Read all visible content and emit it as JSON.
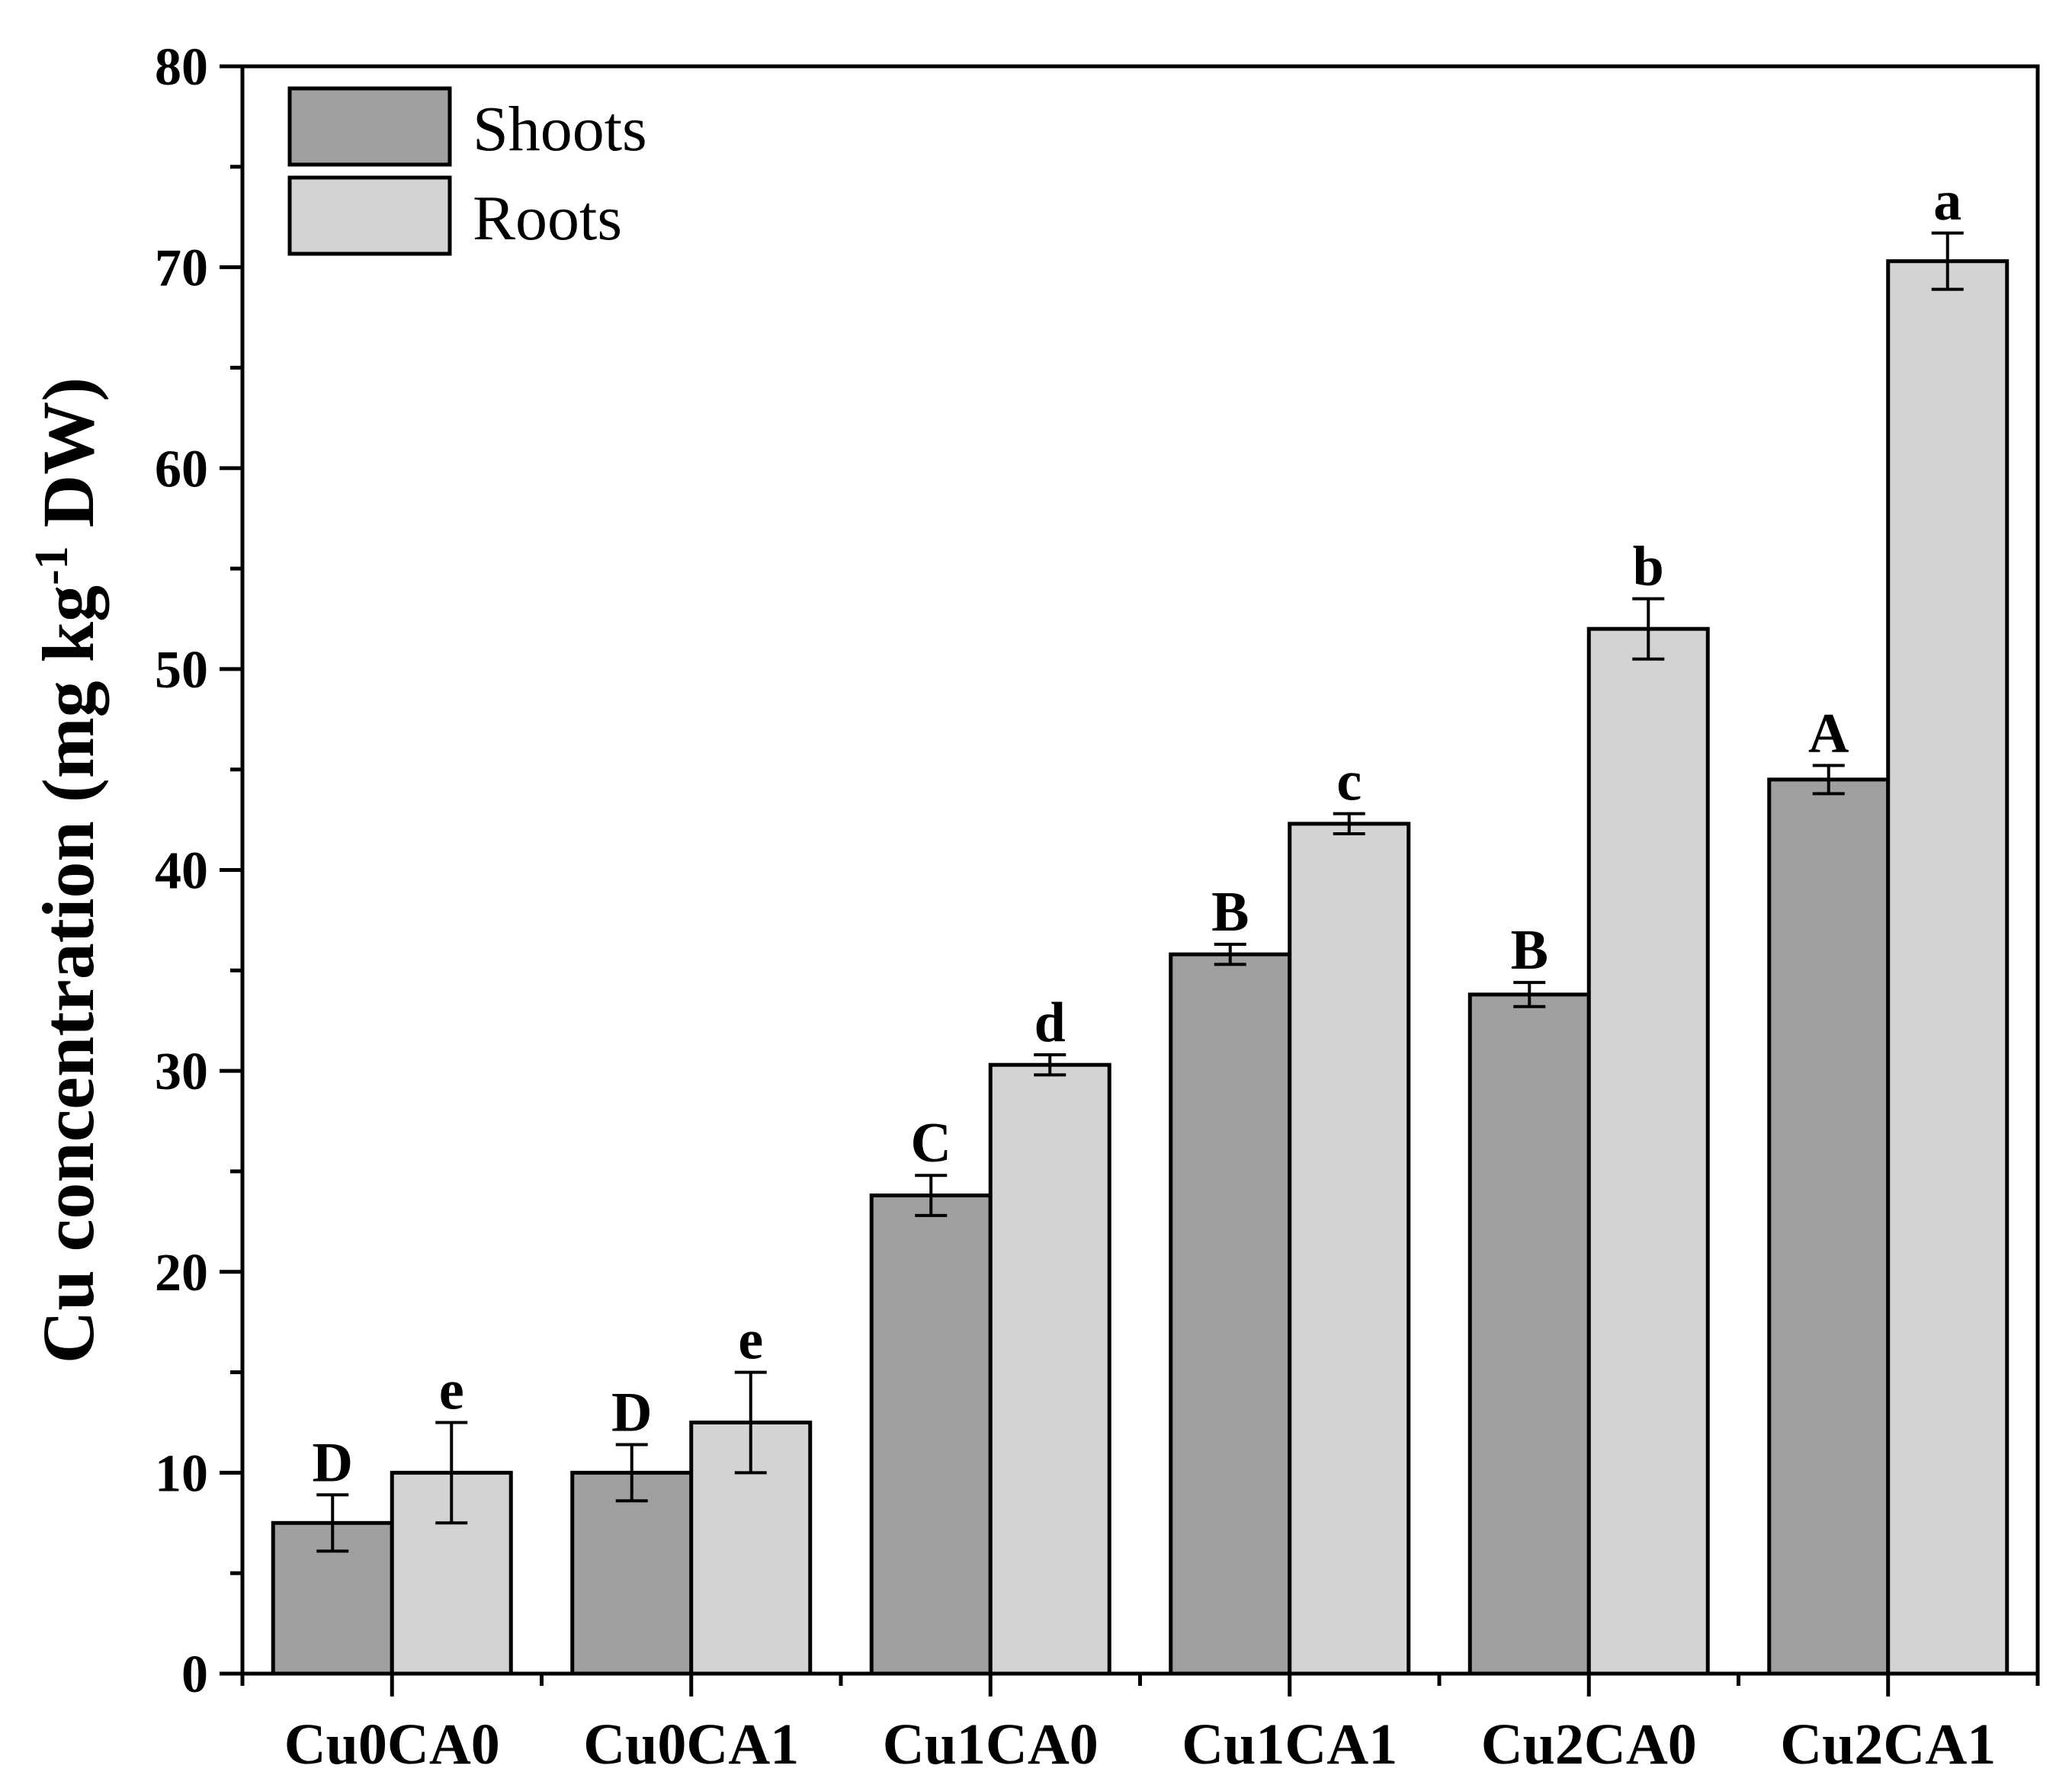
{
  "chart_data": {
    "type": "bar",
    "title": "",
    "xlabel": "",
    "ylabel": {
      "prefix": "Cu concentration (mg kg",
      "superscript": "-1",
      "suffix": " DW)"
    },
    "ylim": [
      0,
      80
    ],
    "yticks": [
      0,
      10,
      20,
      30,
      40,
      50,
      60,
      70,
      80
    ],
    "categories": [
      "Cu0CA0",
      "Cu0CA1",
      "Cu1CA0",
      "Cu1CA1",
      "Cu2CA0",
      "Cu2CA1"
    ],
    "legend_position": "top-left",
    "series": [
      {
        "name": "Shoots",
        "color": "#a0a0a0",
        "values": [
          7.5,
          10.0,
          23.8,
          35.8,
          33.8,
          44.5
        ],
        "errors": [
          1.4,
          1.4,
          1.0,
          0.5,
          0.6,
          0.7
        ],
        "letters": [
          "D",
          "D",
          "C",
          "B",
          "B",
          "A"
        ]
      },
      {
        "name": "Roots",
        "color": "#d3d3d3",
        "values": [
          10.0,
          12.5,
          30.3,
          42.3,
          52.0,
          70.3
        ],
        "errors": [
          2.5,
          2.5,
          0.5,
          0.5,
          1.5,
          1.4
        ],
        "letters": [
          "e",
          "e",
          "d",
          "c",
          "b",
          "a"
        ]
      }
    ]
  }
}
